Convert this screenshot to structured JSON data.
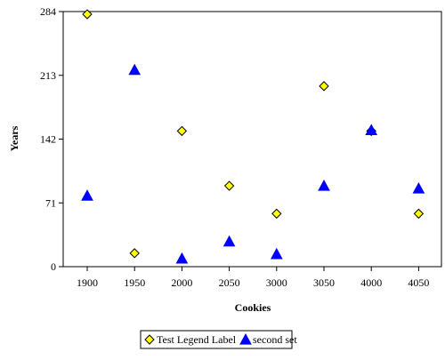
{
  "chart_data": {
    "type": "scatter",
    "title": "",
    "xlabel": "Cookies",
    "ylabel": "Years",
    "x_ticks": [
      1900,
      1950,
      2000,
      2050,
      3000,
      3050,
      4000,
      4050
    ],
    "y_ticks": [
      0,
      71,
      142,
      213,
      284
    ],
    "ylim": [
      0,
      284
    ],
    "grid": false,
    "legend_position": "bottom",
    "series": [
      {
        "name": "Test Legend Label",
        "marker": "diamond",
        "color": "#ffff00",
        "x": [
          1900,
          1950,
          2000,
          2050,
          3000,
          3050,
          4000,
          4050
        ],
        "y": [
          281,
          15,
          151,
          90,
          59,
          201,
          151,
          59
        ]
      },
      {
        "name": "second set",
        "marker": "triangle",
        "color": "#0000ff",
        "x": [
          1900,
          1950,
          2000,
          2050,
          3000,
          3050,
          4000,
          4050
        ],
        "y": [
          79,
          219,
          9,
          28,
          14,
          90,
          152,
          87
        ]
      }
    ]
  }
}
